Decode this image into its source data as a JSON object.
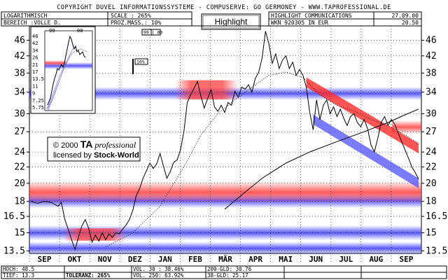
{
  "header": {
    "copyright": "COPYRIGHT  DUVEL INFORMATIONSSYSTEME - COMPUSERVE: GO GERMONEY - WWW.TAPROFESSIONAL.DE",
    "row1": {
      "label1": "LOGARITHMISCH",
      "label2": "SCALE : 265%",
      "label3": "HIGHLIGHT COMMUNICATIONS",
      "label4": "27.09.00"
    },
    "row2": {
      "label1": "BEREICH :VOLLE D.",
      "label2": "PROZ.MASS.: 10%",
      "label3": "WKN 920305  IN EUR",
      "label4": "20.50"
    },
    "highlight_button": "Highlight"
  },
  "inset": {
    "left_label": "99",
    "right_label": "00",
    "scale_box": "10%",
    "yticks": [
      "46",
      "42",
      "34",
      "26",
      "21",
      "17",
      "13.5",
      "11",
      "9",
      "7.25",
      "5.75"
    ]
  },
  "marker_label": "99 | 00",
  "scale_marker": "10%",
  "watermark": {
    "line1_a": "© 2000 ",
    "line1_b": "TA",
    "line1_c": " professional",
    "line2_a": "licensed by ",
    "line2_b": "Stock-World"
  },
  "footer": {
    "hoch": "HOCH: 48.5",
    "tief": "TIEF: 13.3",
    "toleranz": "TOLERANZ: 265%",
    "vol30": "VOL. 30 : 38.46%",
    "vol250": "VOL. 250: 63.92%",
    "gld200": "200-GLD: 30.76",
    "gld38": "38-GLD: 25.17"
  },
  "colors": {
    "red_band": "#ff3d3d",
    "blue_band": "#3b3bff",
    "grid": "#000000",
    "line": "#000000"
  },
  "chart_data": {
    "type": "line",
    "title": "HIGHLIGHT COMMUNICATIONS",
    "scale": "log",
    "yticks": [
      13.5,
      15,
      16.5,
      18,
      20,
      22,
      24,
      27,
      30,
      34,
      38,
      42,
      46
    ],
    "ylim": [
      13.3,
      50
    ],
    "month_labels": [
      "SEP",
      "OKT",
      "NOV",
      "DEZ",
      "JAN",
      "FEB",
      "MÄR",
      "APR",
      "MAI",
      "JUN",
      "JUL",
      "AUG",
      "SEP"
    ],
    "price": [
      [
        0,
        18.0
      ],
      [
        2,
        17.8
      ],
      [
        4,
        18.0
      ],
      [
        6,
        17.9
      ],
      [
        8,
        17.5
      ],
      [
        9,
        17.9
      ],
      [
        10,
        16.2
      ],
      [
        11,
        15.3
      ],
      [
        12,
        14.4
      ],
      [
        13,
        13.6
      ],
      [
        14,
        14.6
      ],
      [
        15,
        15.6
      ],
      [
        16,
        16.2
      ],
      [
        17,
        15.4
      ],
      [
        18,
        14.2
      ],
      [
        19,
        14.8
      ],
      [
        20,
        14.3
      ],
      [
        21,
        15.0
      ],
      [
        22,
        14.4
      ],
      [
        23,
        14.9
      ],
      [
        24,
        14.6
      ],
      [
        25,
        15.0
      ],
      [
        26,
        14.9
      ],
      [
        27,
        15.3
      ],
      [
        28,
        15.7
      ],
      [
        29,
        16.2
      ],
      [
        30,
        17.1
      ],
      [
        31,
        18.6
      ],
      [
        32,
        19.4
      ],
      [
        33,
        20.6
      ],
      [
        34,
        21.5
      ],
      [
        35,
        22.5
      ],
      [
        36,
        21.8
      ],
      [
        37,
        22.4
      ],
      [
        38,
        23.8
      ],
      [
        39,
        22.1
      ],
      [
        40,
        20.6
      ],
      [
        41,
        21.4
      ],
      [
        42,
        22.6
      ],
      [
        43,
        22.9
      ],
      [
        44,
        24.3
      ],
      [
        45,
        27.0
      ],
      [
        46,
        32.0
      ],
      [
        47,
        33.5
      ],
      [
        48,
        34.8
      ],
      [
        49,
        36.2
      ],
      [
        50,
        33.2
      ],
      [
        51,
        31.0
      ],
      [
        52,
        32.8
      ],
      [
        53,
        34.5
      ],
      [
        54,
        31.2
      ],
      [
        55,
        30.4
      ],
      [
        56,
        31.5
      ],
      [
        57,
        30.2
      ],
      [
        58,
        32.0
      ],
      [
        59,
        31.5
      ],
      [
        60,
        34.2
      ],
      [
        61,
        33.0
      ],
      [
        62,
        35.0
      ],
      [
        63,
        34.6
      ],
      [
        64,
        35.5
      ],
      [
        65,
        34.0
      ],
      [
        66,
        36.8
      ],
      [
        67,
        38.2
      ],
      [
        68,
        41.5
      ],
      [
        69,
        48.5
      ],
      [
        70,
        45.0
      ],
      [
        71,
        40.2
      ],
      [
        72,
        42.5
      ],
      [
        73,
        39.0
      ],
      [
        74,
        41.0
      ],
      [
        75,
        42.0
      ],
      [
        76,
        39.0
      ],
      [
        77,
        40.5
      ],
      [
        78,
        37.5
      ],
      [
        79,
        38.8
      ],
      [
        80,
        37.5
      ],
      [
        81,
        35.0
      ],
      [
        82,
        30.2
      ],
      [
        83,
        27.3
      ],
      [
        84,
        32.5
      ],
      [
        85,
        29.0
      ],
      [
        86,
        31.5
      ],
      [
        87,
        32.5
      ],
      [
        88,
        30.0
      ],
      [
        89,
        31.2
      ],
      [
        90,
        29.5
      ],
      [
        91,
        30.8
      ],
      [
        92,
        29.2
      ],
      [
        93,
        28.0
      ],
      [
        94,
        29.5
      ],
      [
        95,
        30.0
      ],
      [
        96,
        28.5
      ],
      [
        97,
        27.8
      ],
      [
        98,
        29.0
      ],
      [
        99,
        27.5
      ],
      [
        100,
        25.0
      ],
      [
        101,
        24.0
      ],
      [
        102,
        26.0
      ],
      [
        103,
        28.5
      ],
      [
        104,
        29.5
      ],
      [
        105,
        28.0
      ],
      [
        106,
        29.0
      ],
      [
        107,
        28.2
      ],
      [
        108,
        26.8
      ],
      [
        109,
        25.5
      ],
      [
        110,
        24.3
      ],
      [
        111,
        23.2
      ],
      [
        112,
        22.0
      ],
      [
        113,
        21.3
      ],
      [
        114,
        20.5
      ]
    ],
    "ma38": [
      [
        22,
        13.8
      ],
      [
        30,
        15.0
      ],
      [
        38,
        17.5
      ],
      [
        45,
        22.0
      ],
      [
        50,
        26.5
      ],
      [
        55,
        30.0
      ],
      [
        60,
        32.5
      ],
      [
        65,
        35.0
      ],
      [
        70,
        37.5
      ],
      [
        75,
        38.2
      ],
      [
        80,
        37.0
      ],
      [
        85,
        33.5
      ],
      [
        90,
        31.5
      ],
      [
        95,
        30.5
      ],
      [
        100,
        29.0
      ],
      [
        105,
        28.0
      ],
      [
        110,
        26.5
      ],
      [
        114,
        25.2
      ]
    ],
    "ma200": [
      [
        57,
        17.2
      ],
      [
        63,
        19.0
      ],
      [
        68,
        20.6
      ],
      [
        75,
        22.5
      ],
      [
        82,
        24.0
      ],
      [
        90,
        25.5
      ],
      [
        98,
        27.0
      ],
      [
        105,
        28.5
      ],
      [
        110,
        29.8
      ],
      [
        114,
        30.8
      ]
    ],
    "red_zones": [
      [
        18,
        20
      ],
      [
        33,
        36
      ],
      [
        27,
        28.5
      ],
      [
        14.5,
        15.2
      ]
    ],
    "blue_zones": [
      [
        17.6,
        18.6
      ],
      [
        14.6,
        15.4
      ],
      [
        13.4,
        14.0
      ],
      [
        33,
        34.5
      ]
    ],
    "red_channel": {
      "from": [
        81,
        36.0
      ],
      "to": [
        114,
        24.5
      ]
    },
    "blue_channel": {
      "from": [
        83,
        29.0
      ],
      "to": [
        114,
        20.0
      ]
    }
  }
}
